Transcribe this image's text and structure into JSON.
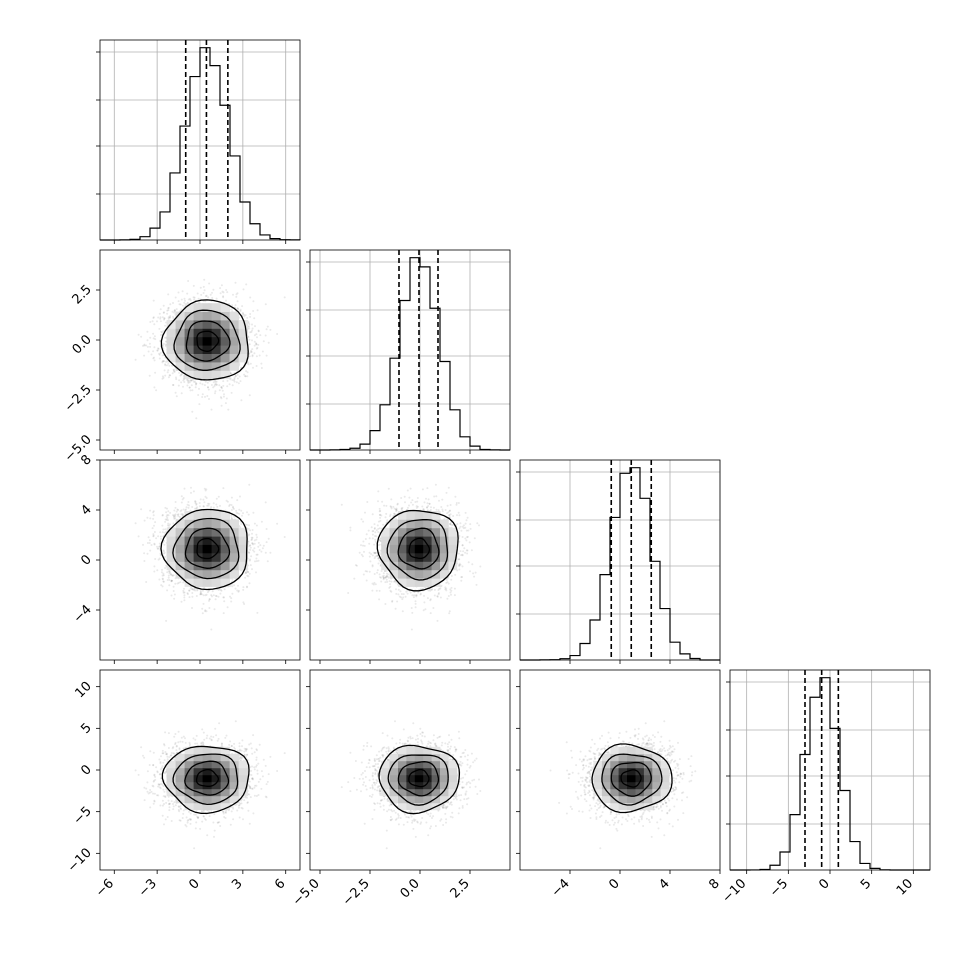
{
  "chart_data": {
    "type": "corner",
    "grid": true,
    "variables": [
      {
        "index": 0,
        "range": [
          -7,
          7
        ],
        "ticks": [
          -6,
          -3,
          0,
          3,
          6
        ],
        "tick_labels": [
          "−6",
          "−3",
          "0",
          "3",
          "6"
        ],
        "mean": 0.5,
        "sigma": 1.5,
        "quantiles": [
          -1.0,
          0.45,
          1.95
        ]
      },
      {
        "index": 1,
        "range": [
          -5.5,
          4.5
        ],
        "ticks": [
          -5.0,
          -2.5,
          0.0,
          2.5
        ],
        "tick_labels": [
          "−5.0",
          "−2.5",
          "0.0",
          "2.5"
        ],
        "mean": -0.05,
        "sigma": 1.0,
        "quantiles": [
          -1.05,
          -0.05,
          0.9
        ]
      },
      {
        "index": 2,
        "range": [
          -8,
          8
        ],
        "ticks": [
          -4,
          0,
          4,
          8
        ],
        "tick_labels": [
          "−4",
          "0",
          "4",
          "8"
        ],
        "mean": 0.9,
        "sigma": 1.6,
        "quantiles": [
          -0.7,
          0.9,
          2.5
        ]
      },
      {
        "index": 3,
        "range": [
          -12,
          12
        ],
        "ticks": [
          -10,
          -5,
          0,
          5,
          10
        ],
        "tick_labels": [
          "−10",
          "−5",
          "0",
          "5",
          "10"
        ],
        "mean": -1.0,
        "sigma": 2.0,
        "quantiles": [
          -3.0,
          -1.0,
          1.0
        ]
      }
    ],
    "row_tick_labels": {
      "1": [
        "2.5",
        "0.0",
        "−2.5",
        "−5.0"
      ],
      "2": [
        "8",
        "4",
        "0",
        "−4"
      ],
      "3": [
        "10",
        "5",
        "0",
        "−5",
        "−10"
      ]
    },
    "samples": 10000,
    "contour_levels": [
      "0.5σ",
      "1σ",
      "1.5σ",
      "2σ"
    ],
    "colors": {
      "points": "#555555",
      "lines": "#000000",
      "grid": "#b0b0b0",
      "density_max": "#000000"
    }
  }
}
